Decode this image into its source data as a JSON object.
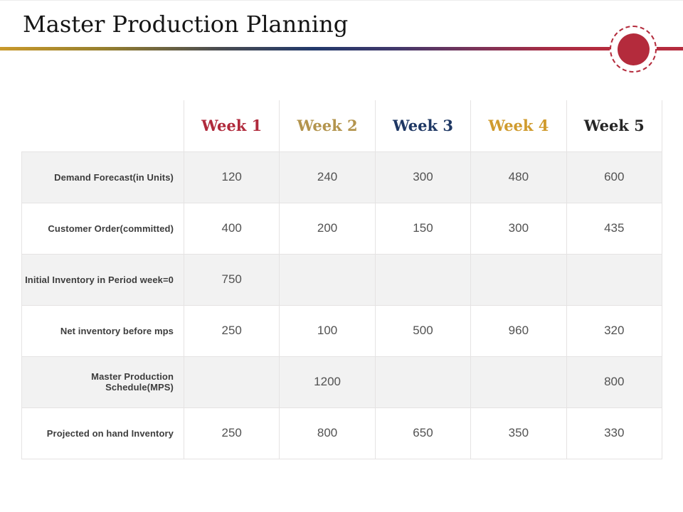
{
  "slide": {
    "title": "Master Production Planning",
    "accent_color": "#b42b3c",
    "gradient_colors": [
      "#c9992b",
      "#4a4c50",
      "#22396b",
      "#7c3358",
      "#b52c3e"
    ]
  },
  "table": {
    "columns": [
      {
        "label": "Week 1",
        "color": "#b02a3c"
      },
      {
        "label": "Week 2",
        "color": "#b3944d"
      },
      {
        "label": "Week 3",
        "color": "#1f3864"
      },
      {
        "label": "Week 4",
        "color": "#d09b2d"
      },
      {
        "label": "Week 5",
        "color": "#262626"
      }
    ],
    "rows": [
      {
        "label": "Demand Forecast(in Units)",
        "values": [
          "120",
          "240",
          "300",
          "480",
          "600"
        ]
      },
      {
        "label": "Customer Order(committed)",
        "values": [
          "400",
          "200",
          "150",
          "300",
          "435"
        ]
      },
      {
        "label": "Initial Inventory in Period week=0",
        "values": [
          "750",
          "",
          "",
          "",
          ""
        ]
      },
      {
        "label": "Net inventory before mps",
        "values": [
          "250",
          "100",
          "500",
          "960",
          "320"
        ]
      },
      {
        "label": "Master Production  Schedule(MPS)",
        "values": [
          "",
          "1200",
          "",
          "",
          "800"
        ]
      },
      {
        "label": "Projected on hand Inventory",
        "values": [
          "250",
          "800",
          "650",
          "350",
          "330"
        ]
      }
    ]
  }
}
